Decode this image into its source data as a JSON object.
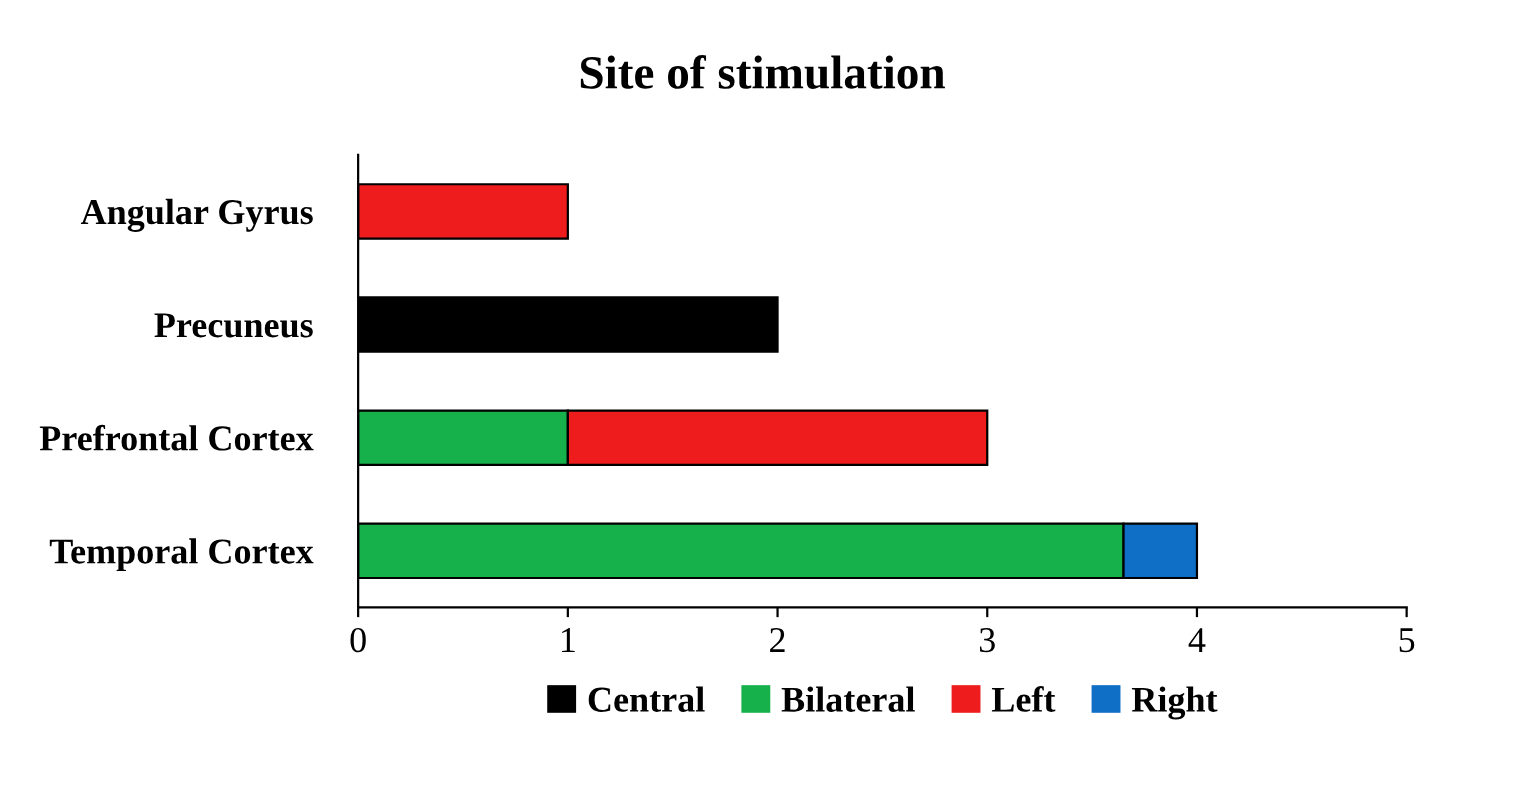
{
  "chart_data": {
    "type": "bar",
    "orientation": "horizontal",
    "stacked": true,
    "title": "Site of stimulation",
    "categories": [
      "Angular Gyrus",
      "Precuneus",
      "Prefrontal Cortex",
      "Temporal Cortex"
    ],
    "series": [
      {
        "name": "Central",
        "color": "#000000",
        "values": [
          null,
          2,
          null,
          null
        ]
      },
      {
        "name": "Bilateral",
        "color": "#17b14b",
        "values": [
          null,
          null,
          1,
          3.65
        ]
      },
      {
        "name": "Left",
        "color": "#ee1c1c",
        "values": [
          1,
          null,
          2,
          null
        ]
      },
      {
        "name": "Right",
        "color": "#0f6fc6",
        "values": [
          null,
          null,
          null,
          0.35
        ]
      }
    ],
    "xlim": [
      0,
      5
    ],
    "xticks": [
      0,
      1,
      2,
      3,
      4,
      5
    ],
    "grid": false,
    "legend": "bottom"
  }
}
